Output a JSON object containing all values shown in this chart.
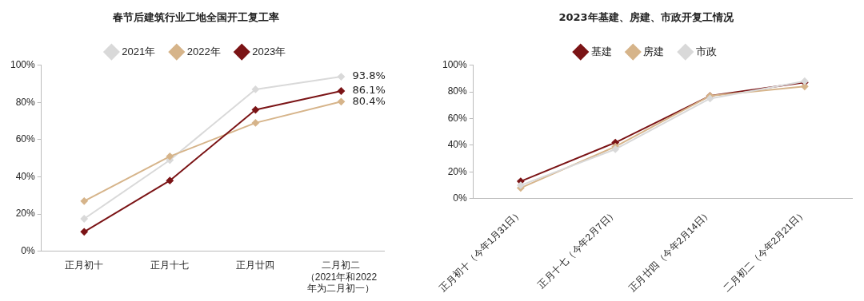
{
  "chart_data": [
    {
      "type": "line",
      "title": "春节后建筑行业工地全国开工复工率",
      "categories": [
        "正月初十",
        "正月十七",
        "正月廿四",
        "二月初二（2021年和2022年为二月初一）"
      ],
      "ylim": [
        0,
        100
      ],
      "yticks": [
        {
          "value": 0,
          "label": "0%"
        },
        {
          "value": 20,
          "label": "20%"
        },
        {
          "value": 40,
          "label": "40%"
        },
        {
          "value": 60,
          "label": "60%"
        },
        {
          "value": 80,
          "label": "80%"
        },
        {
          "value": 100,
          "label": "100%"
        }
      ],
      "grid": false,
      "legend": "top",
      "marker": "diamond",
      "line_style": "solid",
      "series": [
        {
          "name": "2021年",
          "color": "#d9d9d9",
          "values": [
            17.5,
            49,
            87,
            93.8
          ],
          "value_labels": [
            null,
            null,
            null,
            "93.8%"
          ]
        },
        {
          "name": "2022年",
          "color": "#d6b48a",
          "values": [
            27,
            51,
            69,
            80.4
          ],
          "value_labels": [
            null,
            null,
            null,
            "80.4%"
          ]
        },
        {
          "name": "2023年",
          "color": "#7b1416",
          "values": [
            10.5,
            38,
            76,
            86.1
          ],
          "value_labels": [
            null,
            null,
            null,
            "86.1%"
          ]
        }
      ]
    },
    {
      "type": "line",
      "title": "2023年基建、房建、市政开复工情况",
      "categories": [
        "正月初十（今年1月31日）",
        "正月十七（今年2月7日）",
        "正月廿四（今年2月14日）",
        "二月初二（今年2月21日）"
      ],
      "ylim": [
        0,
        100
      ],
      "yticks": [
        {
          "value": 0,
          "label": "0%"
        },
        {
          "value": 20,
          "label": "20%"
        },
        {
          "value": 40,
          "label": "40%"
        },
        {
          "value": 60,
          "label": "60%"
        },
        {
          "value": 80,
          "label": "80%"
        },
        {
          "value": 100,
          "label": "100%"
        }
      ],
      "grid": false,
      "legend": "top",
      "marker": "diamond",
      "line_style": "solid",
      "series": [
        {
          "name": "基建",
          "color": "#7b1416",
          "values": [
            13,
            42,
            77,
            87
          ]
        },
        {
          "name": "房建",
          "color": "#d6b48a",
          "values": [
            8,
            39,
            77,
            84
          ]
        },
        {
          "name": "市政",
          "color": "#d9d9d9",
          "values": [
            10,
            37,
            75,
            88
          ]
        }
      ]
    }
  ]
}
